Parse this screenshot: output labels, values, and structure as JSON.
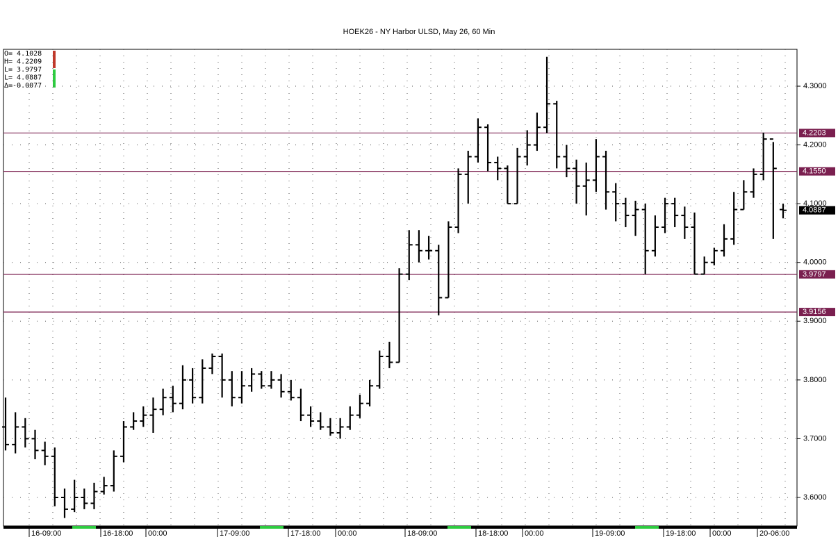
{
  "chart_data": {
    "type": "ohlc",
    "title": "HOEK26 - NY Harbor ULSD, May 26, 60 Min",
    "info_box": [
      "O= 4.1028",
      "H= 4.2209",
      "L= 3.9797",
      "L= 4.0887",
      "Δ=-0.0077"
    ],
    "x_labels": [
      "16-09:00",
      "16-18:00",
      "00:00",
      "17-09:00",
      "17-18:00",
      "00:00",
      "18-09:00",
      "18-18:00",
      "00:00",
      "19-09:00",
      "19-18:00",
      "00:00",
      "20-06:00"
    ],
    "ylim": [
      3.5515,
      4.3627
    ],
    "yticks": [
      {
        "value": 3.6,
        "label": "3.6000"
      },
      {
        "value": 3.7,
        "label": "3.7000"
      },
      {
        "value": 3.8,
        "label": "3.8000"
      },
      {
        "value": 3.9,
        "label": "3.9000"
      },
      {
        "value": 4.0,
        "label": "4.0000"
      },
      {
        "value": 4.1,
        "label": "4.1000"
      },
      {
        "value": 4.2,
        "label": "4.2000"
      },
      {
        "value": 4.3,
        "label": "4.3000"
      }
    ],
    "levels": [
      {
        "value": 4.2203,
        "label": "4.2203"
      },
      {
        "value": 4.155,
        "label": "4.1550"
      },
      {
        "value": 3.9797,
        "label": "3.9797"
      },
      {
        "value": 3.9156,
        "label": "3.9156"
      }
    ],
    "level_color": "#7a1f4f",
    "last_price": {
      "value": 4.0887,
      "label": "4.0887"
    },
    "color": "#000000",
    "grid": true,
    "open": [
      3.72,
      3.69,
      3.72,
      3.7,
      3.68,
      3.67,
      3.6,
      3.58,
      3.6,
      3.59,
      3.61,
      3.62,
      3.67,
      3.72,
      3.73,
      3.74,
      3.75,
      3.77,
      3.76,
      3.8,
      3.77,
      3.82,
      3.84,
      3.8,
      3.77,
      3.79,
      3.81,
      3.79,
      3.8,
      3.78,
      3.77,
      3.74,
      3.73,
      3.72,
      3.71,
      3.72,
      3.74,
      3.76,
      3.79,
      3.84,
      3.83,
      3.98,
      4.03,
      4.02,
      4.02,
      3.94,
      4.06,
      4.15,
      4.18,
      4.23,
      4.17,
      4.16,
      4.1,
      4.18,
      4.2,
      4.23,
      4.27,
      4.18,
      4.16,
      4.13,
      4.14,
      4.18,
      4.12,
      4.1,
      4.08,
      4.09,
      4.02,
      4.06,
      4.1,
      4.08,
      4.06,
      3.98,
      4.0,
      4.02,
      4.04,
      4.09,
      4.12,
      4.15,
      4.21,
      4.09
    ],
    "high": [
      3.77,
      3.745,
      3.735,
      3.715,
      3.695,
      3.685,
      3.615,
      3.63,
      3.615,
      3.625,
      3.635,
      3.68,
      3.73,
      3.745,
      3.755,
      3.77,
      3.785,
      3.79,
      3.825,
      3.82,
      3.835,
      3.845,
      3.845,
      3.815,
      3.815,
      3.82,
      3.815,
      3.815,
      3.81,
      3.8,
      3.785,
      3.755,
      3.745,
      3.735,
      3.735,
      3.755,
      3.775,
      3.8,
      3.85,
      3.865,
      3.99,
      4.055,
      4.055,
      4.045,
      4.03,
      4.07,
      4.16,
      4.19,
      4.245,
      4.235,
      4.18,
      4.165,
      4.195,
      4.225,
      4.255,
      4.35,
      4.275,
      4.2,
      4.175,
      4.17,
      4.21,
      4.19,
      4.135,
      4.11,
      4.105,
      4.1,
      4.08,
      4.11,
      4.11,
      4.095,
      4.085,
      4.01,
      4.025,
      4.065,
      4.12,
      4.14,
      4.16,
      4.2209,
      4.205,
      4.1
    ],
    "low": [
      3.68,
      3.675,
      3.685,
      3.665,
      3.655,
      3.585,
      3.565,
      3.575,
      3.58,
      3.58,
      3.605,
      3.61,
      3.66,
      3.715,
      3.72,
      3.71,
      3.74,
      3.745,
      3.75,
      3.76,
      3.76,
      3.81,
      3.77,
      3.755,
      3.76,
      3.78,
      3.785,
      3.785,
      3.77,
      3.765,
      3.73,
      3.72,
      3.715,
      3.705,
      3.7,
      3.715,
      3.735,
      3.755,
      3.785,
      3.82,
      3.83,
      3.97,
      4.0,
      4.005,
      3.91,
      3.94,
      4.05,
      4.1,
      4.17,
      4.155,
      4.14,
      4.1,
      4.1,
      4.165,
      4.19,
      4.22,
      4.16,
      4.145,
      4.1,
      4.08,
      4.12,
      4.09,
      4.07,
      4.06,
      4.045,
      3.98,
      4.01,
      4.05,
      4.06,
      4.04,
      3.98,
      3.98,
      3.995,
      4.01,
      4.03,
      4.09,
      4.11,
      4.14,
      4.04,
      4.075
    ],
    "close": [
      3.69,
      3.72,
      3.7,
      3.68,
      3.67,
      3.6,
      3.58,
      3.6,
      3.59,
      3.61,
      3.62,
      3.67,
      3.72,
      3.73,
      3.74,
      3.75,
      3.77,
      3.76,
      3.8,
      3.77,
      3.82,
      3.84,
      3.8,
      3.77,
      3.79,
      3.81,
      3.79,
      3.8,
      3.78,
      3.77,
      3.74,
      3.73,
      3.72,
      3.71,
      3.72,
      3.74,
      3.76,
      3.79,
      3.84,
      3.83,
      3.98,
      4.03,
      4.02,
      4.02,
      3.94,
      4.06,
      4.15,
      4.18,
      4.23,
      4.17,
      4.16,
      4.1,
      4.18,
      4.2,
      4.23,
      4.27,
      4.18,
      4.16,
      4.13,
      4.14,
      4.18,
      4.12,
      4.1,
      4.08,
      4.09,
      4.02,
      4.06,
      4.1,
      4.08,
      4.06,
      3.98,
      4.0,
      4.02,
      4.04,
      4.09,
      4.12,
      4.15,
      4.21,
      4.16,
      4.0887
    ]
  }
}
